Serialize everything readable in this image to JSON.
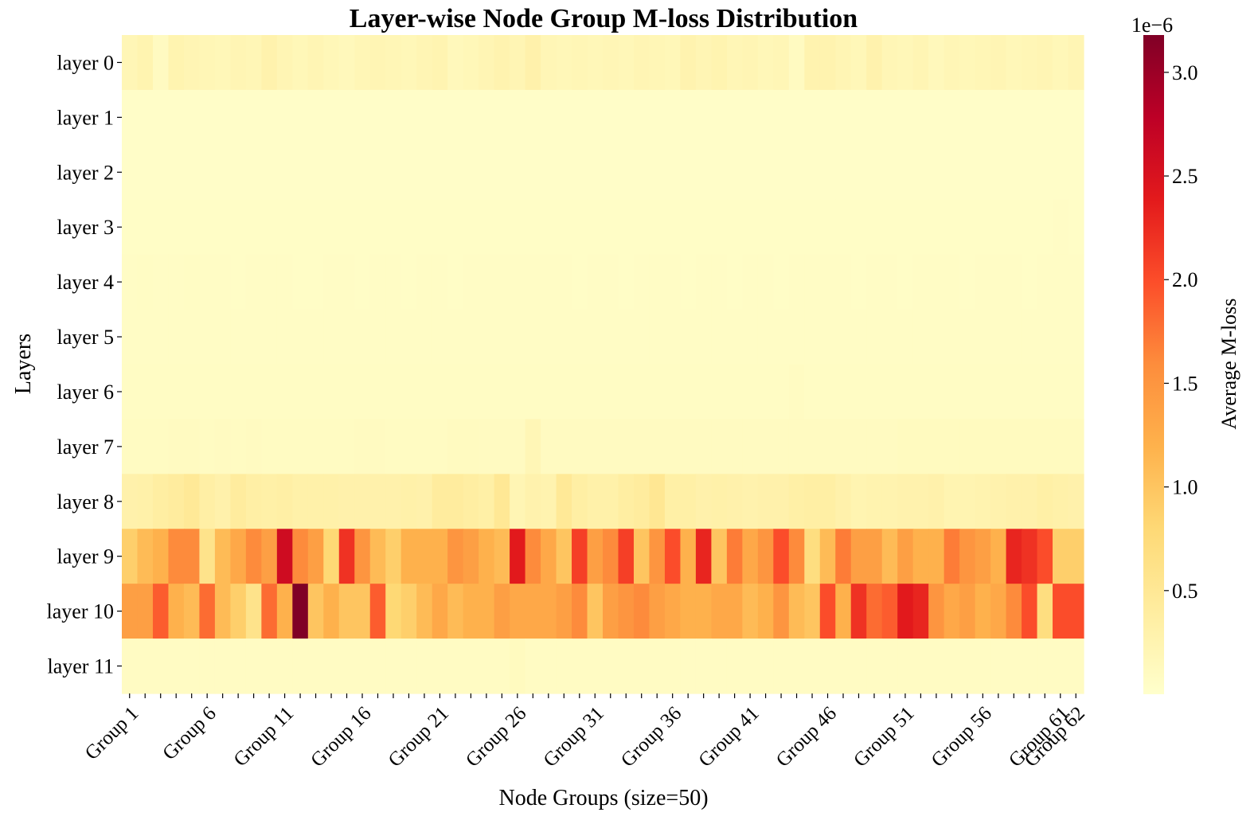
{
  "chart_data": {
    "type": "heatmap",
    "title": "Layer-wise Node Group M-loss Distribution",
    "xlabel": "Node Groups (size=50)",
    "ylabel": "Layers",
    "colorbar": {
      "label": "Average M-loss",
      "offset_text": "1e−6",
      "ticks": [
        0.5,
        1.0,
        1.5,
        2.0,
        2.5,
        3.0
      ],
      "tick_labels": [
        "0.5",
        "1.0",
        "1.5",
        "2.0",
        "2.5",
        "3.0"
      ],
      "range": [
        0.0,
        3.18
      ],
      "colormap": "YlOrRd"
    },
    "rows": [
      "layer 0",
      "layer 1",
      "layer 2",
      "layer 3",
      "layer 4",
      "layer 5",
      "layer 6",
      "layer 7",
      "layer 8",
      "layer 9",
      "layer 10",
      "layer 11"
    ],
    "column_count": 62,
    "x_tick_groups": [
      1,
      6,
      11,
      16,
      21,
      26,
      31,
      36,
      41,
      46,
      51,
      56,
      61,
      62
    ],
    "x_tick_labels": [
      "Group 1",
      "Group 6",
      "Group 11",
      "Group 16",
      "Group 21",
      "Group 26",
      "Group 31",
      "Group 36",
      "Group 41",
      "Group 46",
      "Group 51",
      "Group 56",
      "Group 61",
      "Group 62"
    ],
    "values": [
      [
        0.2,
        0.25,
        0.1,
        0.25,
        0.22,
        0.2,
        0.18,
        0.22,
        0.2,
        0.28,
        0.22,
        0.18,
        0.22,
        0.18,
        0.15,
        0.2,
        0.22,
        0.2,
        0.18,
        0.22,
        0.24,
        0.15,
        0.18,
        0.22,
        0.26,
        0.22,
        0.3,
        0.2,
        0.18,
        0.2,
        0.18,
        0.2,
        0.18,
        0.22,
        0.2,
        0.18,
        0.26,
        0.22,
        0.25,
        0.2,
        0.22,
        0.18,
        0.2,
        0.1,
        0.26,
        0.26,
        0.22,
        0.18,
        0.28,
        0.2,
        0.18,
        0.22,
        0.15,
        0.2,
        0.18,
        0.2,
        0.22,
        0.18,
        0.2,
        0.22,
        0.18,
        0.22
      ],
      [
        0.04,
        0.04,
        0.04,
        0.04,
        0.04,
        0.04,
        0.04,
        0.04,
        0.04,
        0.04,
        0.04,
        0.04,
        0.04,
        0.04,
        0.04,
        0.04,
        0.04,
        0.04,
        0.04,
        0.04,
        0.04,
        0.04,
        0.04,
        0.04,
        0.04,
        0.04,
        0.04,
        0.04,
        0.04,
        0.04,
        0.04,
        0.04,
        0.04,
        0.04,
        0.04,
        0.04,
        0.04,
        0.04,
        0.04,
        0.04,
        0.04,
        0.04,
        0.04,
        0.04,
        0.04,
        0.04,
        0.04,
        0.04,
        0.04,
        0.04,
        0.04,
        0.04,
        0.04,
        0.04,
        0.04,
        0.04,
        0.04,
        0.04,
        0.04,
        0.04,
        0.04,
        0.04
      ],
      [
        0.04,
        0.04,
        0.04,
        0.04,
        0.04,
        0.04,
        0.04,
        0.04,
        0.04,
        0.04,
        0.04,
        0.04,
        0.04,
        0.04,
        0.04,
        0.04,
        0.04,
        0.04,
        0.04,
        0.04,
        0.04,
        0.04,
        0.04,
        0.04,
        0.04,
        0.04,
        0.04,
        0.04,
        0.04,
        0.04,
        0.04,
        0.04,
        0.04,
        0.04,
        0.04,
        0.04,
        0.04,
        0.04,
        0.04,
        0.04,
        0.04,
        0.04,
        0.04,
        0.04,
        0.04,
        0.04,
        0.04,
        0.04,
        0.04,
        0.04,
        0.04,
        0.04,
        0.04,
        0.04,
        0.04,
        0.04,
        0.04,
        0.04,
        0.04,
        0.04,
        0.04,
        0.04
      ],
      [
        0.05,
        0.05,
        0.05,
        0.05,
        0.05,
        0.05,
        0.05,
        0.05,
        0.05,
        0.05,
        0.05,
        0.05,
        0.05,
        0.05,
        0.05,
        0.05,
        0.05,
        0.05,
        0.05,
        0.05,
        0.05,
        0.05,
        0.05,
        0.05,
        0.05,
        0.05,
        0.05,
        0.05,
        0.05,
        0.05,
        0.05,
        0.05,
        0.05,
        0.05,
        0.05,
        0.05,
        0.05,
        0.05,
        0.05,
        0.05,
        0.05,
        0.05,
        0.05,
        0.05,
        0.05,
        0.05,
        0.05,
        0.05,
        0.05,
        0.05,
        0.05,
        0.05,
        0.05,
        0.05,
        0.05,
        0.05,
        0.05,
        0.05,
        0.05,
        0.05,
        0.06,
        0.05
      ],
      [
        0.06,
        0.07,
        0.06,
        0.06,
        0.07,
        0.06,
        0.06,
        0.05,
        0.06,
        0.06,
        0.06,
        0.05,
        0.05,
        0.06,
        0.06,
        0.05,
        0.06,
        0.06,
        0.05,
        0.06,
        0.06,
        0.05,
        0.06,
        0.06,
        0.06,
        0.06,
        0.06,
        0.06,
        0.06,
        0.05,
        0.06,
        0.06,
        0.05,
        0.06,
        0.06,
        0.06,
        0.05,
        0.06,
        0.06,
        0.05,
        0.06,
        0.06,
        0.05,
        0.06,
        0.06,
        0.06,
        0.06,
        0.05,
        0.06,
        0.06,
        0.05,
        0.06,
        0.06,
        0.06,
        0.05,
        0.06,
        0.06,
        0.06,
        0.05,
        0.06,
        0.06,
        0.06
      ],
      [
        0.06,
        0.06,
        0.06,
        0.06,
        0.06,
        0.06,
        0.06,
        0.06,
        0.06,
        0.06,
        0.06,
        0.06,
        0.06,
        0.06,
        0.06,
        0.06,
        0.06,
        0.06,
        0.06,
        0.06,
        0.06,
        0.06,
        0.06,
        0.06,
        0.06,
        0.06,
        0.06,
        0.06,
        0.06,
        0.06,
        0.06,
        0.06,
        0.06,
        0.06,
        0.06,
        0.06,
        0.06,
        0.06,
        0.06,
        0.06,
        0.06,
        0.06,
        0.06,
        0.06,
        0.06,
        0.06,
        0.06,
        0.06,
        0.06,
        0.06,
        0.06,
        0.06,
        0.06,
        0.06,
        0.06,
        0.06,
        0.06,
        0.06,
        0.06,
        0.06,
        0.06,
        0.06
      ],
      [
        0.07,
        0.07,
        0.07,
        0.07,
        0.07,
        0.07,
        0.07,
        0.07,
        0.07,
        0.07,
        0.07,
        0.07,
        0.07,
        0.07,
        0.07,
        0.07,
        0.07,
        0.07,
        0.07,
        0.07,
        0.07,
        0.07,
        0.07,
        0.07,
        0.07,
        0.07,
        0.07,
        0.07,
        0.07,
        0.07,
        0.07,
        0.07,
        0.07,
        0.07,
        0.07,
        0.07,
        0.07,
        0.07,
        0.07,
        0.07,
        0.07,
        0.07,
        0.07,
        0.09,
        0.07,
        0.07,
        0.07,
        0.07,
        0.07,
        0.07,
        0.07,
        0.07,
        0.07,
        0.07,
        0.07,
        0.07,
        0.07,
        0.07,
        0.07,
        0.07,
        0.07,
        0.07
      ],
      [
        0.09,
        0.09,
        0.09,
        0.1,
        0.1,
        0.09,
        0.1,
        0.09,
        0.1,
        0.09,
        0.09,
        0.09,
        0.09,
        0.09,
        0.09,
        0.1,
        0.1,
        0.09,
        0.09,
        0.09,
        0.09,
        0.11,
        0.11,
        0.1,
        0.1,
        0.1,
        0.2,
        0.1,
        0.1,
        0.1,
        0.1,
        0.1,
        0.1,
        0.1,
        0.1,
        0.1,
        0.1,
        0.1,
        0.1,
        0.1,
        0.1,
        0.1,
        0.1,
        0.1,
        0.1,
        0.1,
        0.1,
        0.1,
        0.1,
        0.1,
        0.12,
        0.12,
        0.12,
        0.12,
        0.12,
        0.12,
        0.12,
        0.12,
        0.12,
        0.12,
        0.12,
        0.12
      ],
      [
        0.3,
        0.32,
        0.38,
        0.42,
        0.48,
        0.35,
        0.3,
        0.42,
        0.35,
        0.33,
        0.35,
        0.32,
        0.32,
        0.32,
        0.3,
        0.3,
        0.3,
        0.3,
        0.32,
        0.3,
        0.42,
        0.42,
        0.38,
        0.34,
        0.5,
        0.22,
        0.28,
        0.26,
        0.48,
        0.36,
        0.32,
        0.32,
        0.38,
        0.42,
        0.52,
        0.34,
        0.34,
        0.3,
        0.32,
        0.3,
        0.28,
        0.3,
        0.3,
        0.34,
        0.36,
        0.36,
        0.3,
        0.24,
        0.26,
        0.26,
        0.28,
        0.28,
        0.3,
        0.24,
        0.24,
        0.26,
        0.28,
        0.3,
        0.3,
        0.34,
        0.32,
        0.3
      ],
      [
        0.9,
        1.1,
        1.2,
        1.6,
        1.6,
        0.6,
        1.1,
        1.3,
        1.6,
        1.4,
        2.6,
        1.6,
        1.4,
        0.8,
        2.2,
        1.5,
        1.1,
        0.9,
        1.2,
        1.2,
        1.2,
        1.5,
        1.4,
        1.2,
        1.1,
        2.4,
        1.6,
        1.3,
        1.0,
        2.1,
        1.4,
        1.6,
        2.1,
        1.0,
        1.5,
        2.0,
        1.2,
        2.3,
        1.0,
        1.7,
        1.3,
        1.5,
        2.0,
        1.6,
        0.7,
        1.1,
        1.7,
        1.4,
        1.4,
        1.1,
        1.4,
        1.2,
        1.2,
        1.7,
        1.5,
        1.4,
        1.2,
        2.3,
        2.2,
        2.0,
        0.9,
        0.9
      ],
      [
        1.4,
        1.4,
        1.9,
        1.2,
        1.1,
        1.8,
        1.1,
        0.9,
        0.6,
        1.8,
        1.2,
        3.18,
        1.0,
        1.2,
        1.0,
        1.0,
        1.9,
        0.8,
        0.9,
        1.1,
        1.3,
        1.1,
        1.2,
        1.2,
        1.4,
        1.3,
        1.3,
        1.3,
        1.4,
        1.6,
        1.0,
        1.4,
        1.5,
        1.6,
        1.4,
        1.3,
        1.2,
        1.2,
        1.3,
        1.3,
        1.1,
        1.2,
        1.5,
        1.1,
        1.0,
        2.0,
        1.2,
        2.2,
        1.8,
        1.9,
        2.4,
        2.3,
        1.5,
        1.3,
        1.4,
        1.2,
        1.3,
        1.6,
        2.0,
        0.7,
        2.0,
        2.0
      ],
      [
        0.08,
        0.08,
        0.08,
        0.08,
        0.08,
        0.08,
        0.08,
        0.08,
        0.08,
        0.08,
        0.08,
        0.08,
        0.08,
        0.08,
        0.08,
        0.08,
        0.08,
        0.08,
        0.08,
        0.08,
        0.08,
        0.08,
        0.08,
        0.08,
        0.08,
        0.12,
        0.08,
        0.08,
        0.08,
        0.08,
        0.08,
        0.08,
        0.08,
        0.08,
        0.08,
        0.08,
        0.08,
        0.08,
        0.08,
        0.08,
        0.08,
        0.08,
        0.08,
        0.08,
        0.08,
        0.08,
        0.08,
        0.08,
        0.08,
        0.08,
        0.08,
        0.08,
        0.08,
        0.08,
        0.08,
        0.08,
        0.08,
        0.08,
        0.08,
        0.08,
        0.08,
        0.08
      ]
    ]
  }
}
